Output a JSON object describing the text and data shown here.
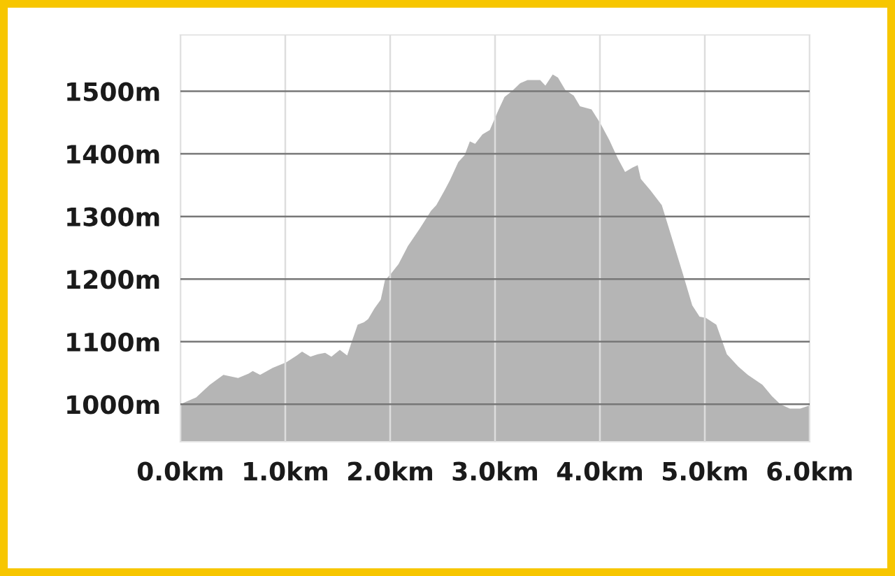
{
  "chart_data": {
    "type": "area",
    "color": "#b5b5b5",
    "grid": true,
    "x": [
      0,
      0.15,
      0.28,
      0.41,
      0.55,
      0.65,
      0.69,
      0.76,
      0.88,
      1.01,
      1.11,
      1.16,
      1.24,
      1.31,
      1.38,
      1.44,
      1.52,
      1.59,
      1.63,
      1.69,
      1.75,
      1.79,
      1.85,
      1.91,
      1.95,
      2.0,
      2.08,
      2.17,
      2.28,
      2.39,
      2.44,
      2.52,
      2.57,
      2.65,
      2.71,
      2.76,
      2.81,
      2.88,
      2.95,
      3.03,
      3.09,
      3.16,
      3.24,
      3.31,
      3.43,
      3.48,
      3.55,
      3.6,
      3.67,
      3.75,
      3.81,
      3.92,
      4.01,
      4.09,
      4.17,
      4.24,
      4.31,
      4.36,
      4.39,
      4.48,
      4.59,
      4.68,
      4.79,
      4.88,
      4.95,
      5.01,
      5.11,
      5.21,
      5.32,
      5.41,
      5.55,
      5.64,
      5.72,
      5.81,
      5.91,
      6.0
    ],
    "values": [
      1000,
      1011,
      1031,
      1047,
      1042,
      1049,
      1053,
      1047,
      1058,
      1067,
      1078,
      1084,
      1076,
      1080,
      1082,
      1076,
      1087,
      1078,
      1098,
      1127,
      1131,
      1136,
      1153,
      1167,
      1198,
      1207,
      1224,
      1253,
      1280,
      1309,
      1318,
      1342,
      1358,
      1387,
      1398,
      1420,
      1416,
      1431,
      1438,
      1469,
      1491,
      1500,
      1513,
      1518,
      1518,
      1509,
      1527,
      1522,
      1502,
      1493,
      1476,
      1471,
      1447,
      1422,
      1393,
      1371,
      1378,
      1382,
      1360,
      1342,
      1318,
      1269,
      1209,
      1158,
      1140,
      1138,
      1127,
      1080,
      1060,
      1047,
      1031,
      1013,
      1000,
      993,
      993,
      998
    ],
    "xlim": [
      0,
      6
    ],
    "ylim": [
      940,
      1590
    ],
    "xticks": [
      {
        "value": 0,
        "label": "0.0km"
      },
      {
        "value": 1,
        "label": "1.0km"
      },
      {
        "value": 2,
        "label": "2.0km"
      },
      {
        "value": 3,
        "label": "3.0km"
      },
      {
        "value": 4,
        "label": "4.0km"
      },
      {
        "value": 5,
        "label": "5.0km"
      },
      {
        "value": 6,
        "label": "6.0km"
      }
    ],
    "yticks": [
      {
        "value": 1000,
        "label": "1000m"
      },
      {
        "value": 1100,
        "label": "1100m"
      },
      {
        "value": 1200,
        "label": "1200m"
      },
      {
        "value": 1300,
        "label": "1300m"
      },
      {
        "value": 1400,
        "label": "1400m"
      },
      {
        "value": 1500,
        "label": "1500m"
      }
    ]
  }
}
